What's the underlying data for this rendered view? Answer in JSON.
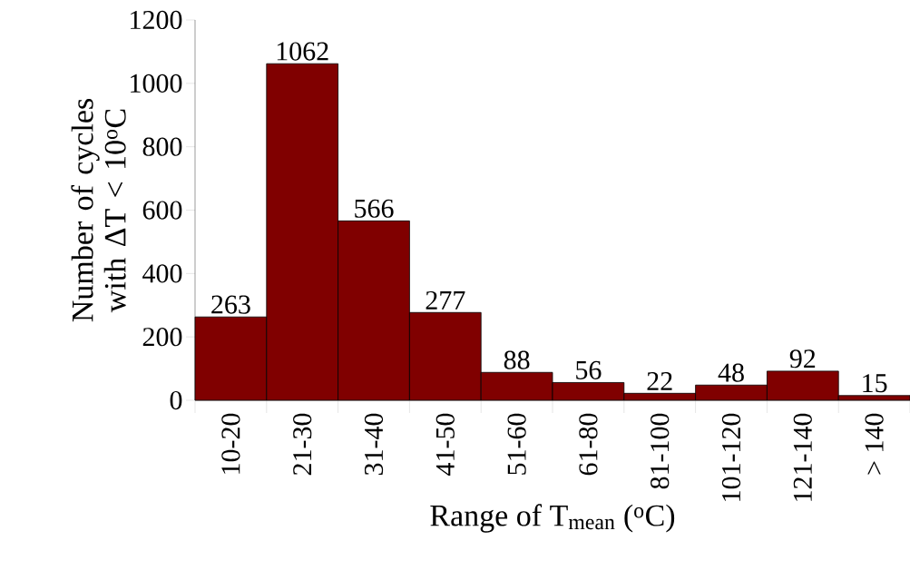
{
  "chart_data": {
    "type": "bar",
    "xlabel": "Range of T$_{mean}$ ($^{o}$C)",
    "ylabel": "Number of cycles with ΔT < 10$^{o}$C",
    "categories": [
      "10-20",
      "21-30",
      "31-40",
      "41-50",
      "51-60",
      "61-80",
      "81-100",
      "101-120",
      "121-140",
      "> 140"
    ],
    "values": [
      263,
      1062,
      566,
      277,
      88,
      56,
      22,
      48,
      92,
      15
    ],
    "color": "#800000",
    "ylim": [
      0,
      1200
    ],
    "yticks": [
      0,
      200,
      400,
      600,
      800,
      1000,
      1200
    ],
    "data_labels": true
  }
}
